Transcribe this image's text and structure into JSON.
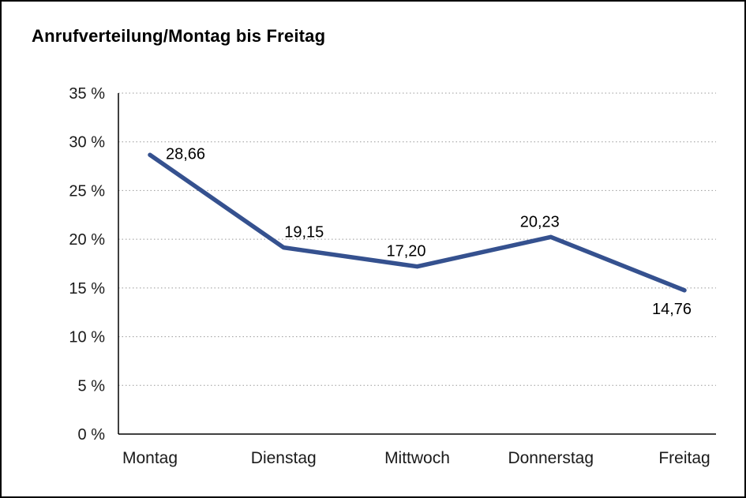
{
  "chart_data": {
    "type": "line",
    "title": "Anrufverteilung/Montag bis Freitag",
    "categories": [
      "Montag",
      "Dienstag",
      "Mittwoch",
      "Donnerstag",
      "Freitag"
    ],
    "values": [
      28.66,
      19.15,
      17.2,
      20.23,
      14.76
    ],
    "value_labels": [
      "28,66",
      "19,15",
      "17,20",
      "20,23",
      "14,76"
    ],
    "xlabel": "",
    "ylabel": "",
    "ylim": [
      0,
      35
    ],
    "yticks": [
      0,
      5,
      10,
      15,
      20,
      25,
      30,
      35
    ],
    "ytick_labels": [
      "0 %",
      "5 %",
      "10 %",
      "15 %",
      "20 %",
      "25 %",
      "30 %",
      "35 %"
    ],
    "grid": "dotted-horizontal",
    "legend": "none",
    "line_color": "#35518f",
    "axis_color": "#000000",
    "grid_color": "#999999",
    "text_color": "#1a1a1a",
    "label_placement": [
      "right",
      "above-right",
      "above-left",
      "above-left",
      "below-left"
    ]
  }
}
